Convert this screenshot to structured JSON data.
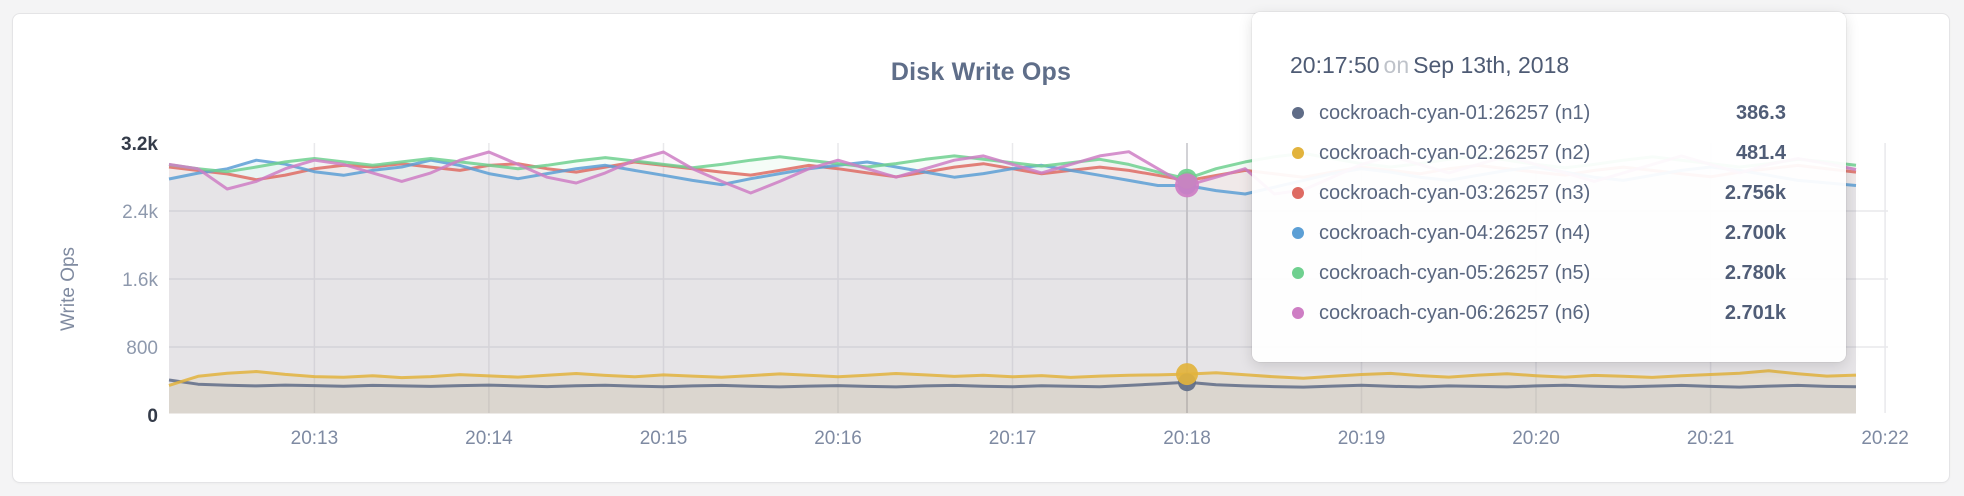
{
  "window": {
    "background_color": "#f4f4f5",
    "card_background": "#ffffff"
  },
  "chart": {
    "title": "Disk Write Ops",
    "y_axis_label": "Write Ops"
  },
  "chart_data": {
    "type": "line",
    "title": "Disk Write Ops",
    "xlabel": "",
    "ylabel": "Write Ops",
    "grid": true,
    "legend_position": "none",
    "ylim": [
      0,
      3400
    ],
    "x_start_time": "20:12:10",
    "x_end_time": "20:21:50",
    "sample_interval_seconds": 10,
    "y_ticks": [
      {
        "value": 0,
        "label": "0",
        "dark": true,
        "grid": false
      },
      {
        "value": 800,
        "label": "800",
        "dark": false,
        "grid": true
      },
      {
        "value": 1600,
        "label": "1.6k",
        "dark": false,
        "grid": true
      },
      {
        "value": 2400,
        "label": "2.4k",
        "dark": false,
        "grid": true
      },
      {
        "value": 3200,
        "label": "3.2k",
        "dark": true,
        "grid": false
      }
    ],
    "x_ticks": [
      {
        "label": "20:13",
        "offset_s": 50
      },
      {
        "label": "20:14",
        "offset_s": 110
      },
      {
        "label": "20:15",
        "offset_s": 170
      },
      {
        "label": "20:16",
        "offset_s": 230
      },
      {
        "label": "20:17",
        "offset_s": 290
      },
      {
        "label": "20:18",
        "offset_s": 350
      },
      {
        "label": "20:19",
        "offset_s": 410
      },
      {
        "label": "20:20",
        "offset_s": 470
      },
      {
        "label": "20:21",
        "offset_s": 530
      },
      {
        "label": "20:22",
        "offset_s": 590
      }
    ],
    "hover": {
      "index": 35,
      "time": "20:17:50"
    },
    "series": [
      {
        "name": "cockroach-cyan-01:26257 (n1)",
        "color": "#5F6C87",
        "values": [
          412,
          362,
          350,
          342,
          352,
          346,
          338,
          348,
          342,
          336,
          346,
          352,
          342,
          334,
          344,
          350,
          340,
          332,
          342,
          348,
          338,
          330,
          340,
          346,
          336,
          330,
          342,
          348,
          338,
          332,
          344,
          338,
          332,
          348,
          366,
          386.3,
          356,
          342,
          334,
          328,
          340,
          350,
          338,
          330,
          342,
          336,
          330,
          342,
          350,
          338,
          330,
          340,
          348,
          336,
          328,
          340,
          348,
          336,
          332
        ]
      },
      {
        "name": "cockroach-cyan-02:26257 (n2)",
        "color": "#E2B33D",
        "values": [
          348,
          455,
          492,
          512,
          478,
          452,
          444,
          462,
          440,
          452,
          475,
          460,
          446,
          468,
          488,
          466,
          450,
          472,
          458,
          444,
          464,
          484,
          468,
          450,
          468,
          488,
          472,
          454,
          468,
          450,
          464,
          442,
          458,
          468,
          472,
          481.4,
          498,
          474,
          450,
          432,
          456,
          476,
          490,
          464,
          446,
          470,
          486,
          462,
          446,
          466,
          456,
          442,
          462,
          476,
          492,
          520,
          486,
          458,
          470
        ]
      },
      {
        "name": "cockroach-cyan-03:26257 (n3)",
        "color": "#DE6B63",
        "values": [
          2918,
          2876,
          2836,
          2768,
          2822,
          2896,
          2938,
          2918,
          2956,
          2916,
          2878,
          2936,
          2956,
          2898,
          2858,
          2916,
          2976,
          2936,
          2896,
          2858,
          2822,
          2878,
          2936,
          2898,
          2848,
          2802,
          2858,
          2916,
          2956,
          2898,
          2838,
          2878,
          2916,
          2878,
          2820,
          2756,
          2818,
          2878,
          2838,
          2798,
          2858,
          2916,
          2878,
          2838,
          2898,
          2936,
          2898,
          2858,
          2822,
          2878,
          2916,
          2878,
          2838,
          2802,
          2858,
          2898,
          2936,
          2898,
          2858
        ]
      },
      {
        "name": "cockroach-cyan-04:26257 (n4)",
        "color": "#5C9FD5",
        "values": [
          2776,
          2846,
          2896,
          2998,
          2950,
          2862,
          2820,
          2878,
          2918,
          2998,
          2936,
          2840,
          2780,
          2840,
          2898,
          2938,
          2878,
          2820,
          2760,
          2710,
          2780,
          2840,
          2898,
          2938,
          2976,
          2918,
          2858,
          2798,
          2840,
          2898,
          2938,
          2878,
          2820,
          2760,
          2700,
          2700,
          2640,
          2600,
          2680,
          2760,
          2840,
          2898,
          2858,
          2798,
          2760,
          2820,
          2878,
          2918,
          2858,
          2798,
          2760,
          2820,
          2878,
          2918,
          2878,
          2820,
          2760,
          2730,
          2700
        ]
      },
      {
        "name": "cockroach-cyan-05:26257 (n5)",
        "color": "#6FD08F",
        "values": [
          2946,
          2898,
          2862,
          2918,
          2978,
          3018,
          2978,
          2938,
          2978,
          3018,
          2978,
          2938,
          2898,
          2938,
          2988,
          3028,
          2988,
          2948,
          2908,
          2948,
          2998,
          3038,
          2998,
          2958,
          2918,
          2958,
          3008,
          3048,
          3008,
          2968,
          2928,
          2968,
          3008,
          2948,
          2858,
          2780,
          2898,
          2978,
          3038,
          3078,
          3018,
          2958,
          2918,
          2958,
          3008,
          3048,
          2998,
          2948,
          2908,
          2948,
          2998,
          3038,
          2998,
          2958,
          2918,
          2958,
          3008,
          2978,
          2938
        ]
      },
      {
        "name": "cockroach-cyan-06:26257 (n6)",
        "color": "#CE7EC4",
        "values": [
          2948,
          2896,
          2659,
          2748,
          2898,
          2998,
          2948,
          2848,
          2748,
          2848,
          2998,
          3094,
          2948,
          2798,
          2729,
          2848,
          2998,
          3094,
          2898,
          2748,
          2612,
          2748,
          2898,
          2998,
          2898,
          2798,
          2898,
          2998,
          3048,
          2948,
          2848,
          2948,
          3048,
          3098,
          2898,
          2701,
          2798,
          2898,
          2600,
          2648,
          2798,
          2948,
          3048,
          2948,
          2848,
          2948,
          3048,
          2948,
          2848,
          2748,
          2848,
          2948,
          3048,
          2948,
          2848,
          2948,
          3018,
          2958,
          2888
        ]
      }
    ]
  },
  "tooltip": {
    "time": "20:17:50",
    "separator": "on",
    "date": "Sep 13th, 2018",
    "rows": [
      {
        "name": "cockroach-cyan-01:26257 (n1)",
        "value": "386.3",
        "color": "#5F6C87"
      },
      {
        "name": "cockroach-cyan-02:26257 (n2)",
        "value": "481.4",
        "color": "#E2B33D"
      },
      {
        "name": "cockroach-cyan-03:26257 (n3)",
        "value": "2.756k",
        "color": "#DE6B63"
      },
      {
        "name": "cockroach-cyan-04:26257 (n4)",
        "value": "2.700k",
        "color": "#5C9FD5"
      },
      {
        "name": "cockroach-cyan-05:26257 (n5)",
        "value": "2.780k",
        "color": "#6FD08F"
      },
      {
        "name": "cockroach-cyan-06:26257 (n6)",
        "value": "2.701k",
        "color": "#CE7EC4"
      }
    ]
  }
}
